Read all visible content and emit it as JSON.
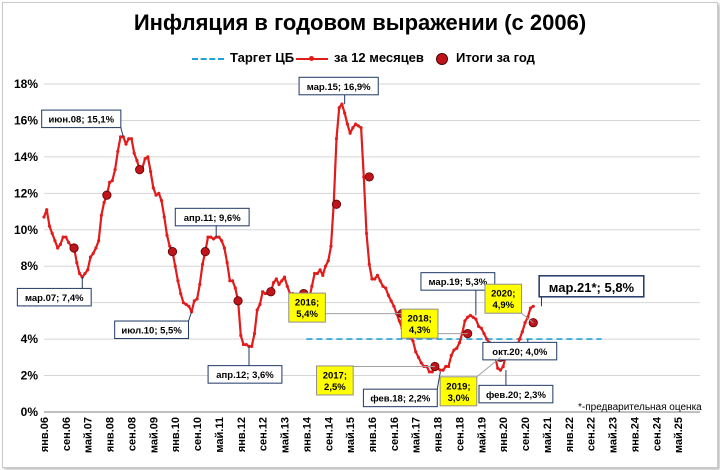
{
  "title": "Инфляция в годовом выражении (с 2006)",
  "legend": {
    "target": "Таргет ЦБ",
    "monthly": "за 12 месяцев",
    "yearly": "Итоги за год"
  },
  "note": "*-предварительная оценка",
  "colors": {
    "line": "#e21b1b",
    "dot": "#c0141b",
    "target": "#1fa3d6",
    "callout_yellow": "#ffff00",
    "callout_border": "#1f3864"
  },
  "chart_data": {
    "type": "line",
    "x_labels": [
      "янв.06",
      "сен.06",
      "май.07",
      "янв.08",
      "сен.08",
      "май.09",
      "янв.10",
      "сен.10",
      "май.11",
      "янв.12",
      "сен.12",
      "май.13",
      "янв.14",
      "сен.14",
      "май.15",
      "янв.16",
      "сен.16",
      "май.17",
      "янв.18",
      "сен.18",
      "май.19",
      "янв.20",
      "сен.20",
      "май.21",
      "янв.22",
      "сен.22",
      "май.23",
      "янв.24",
      "сен.24",
      "май.25"
    ],
    "y_ticks": [
      "0%",
      "2%",
      "4%",
      "6%",
      "8%",
      "10%",
      "12%",
      "14%",
      "16%",
      "18%"
    ],
    "ylim": [
      0,
      18
    ],
    "series": [
      {
        "name": "за 12 месяцев",
        "start": "янв.06",
        "unit": "%",
        "values": [
          10.7,
          11.1,
          10.2,
          9.8,
          9.4,
          9.0,
          9.2,
          9.6,
          9.6,
          9.3,
          9.1,
          9.0,
          8.2,
          7.6,
          7.4,
          7.6,
          7.8,
          8.5,
          8.7,
          9.0,
          9.4,
          10.8,
          11.5,
          11.9,
          12.6,
          12.7,
          13.3,
          14.3,
          15.1,
          15.1,
          14.7,
          15.0,
          15.0,
          14.2,
          13.8,
          13.3,
          13.4,
          13.9,
          14.0,
          13.2,
          12.3,
          11.9,
          12.0,
          11.6,
          10.7,
          9.7,
          9.1,
          8.8,
          8.0,
          7.2,
          6.5,
          6.0,
          5.9,
          5.8,
          5.5,
          6.1,
          6.2,
          7.0,
          8.1,
          8.8,
          9.6,
          9.6,
          9.5,
          9.6,
          9.6,
          9.4,
          9.0,
          8.2,
          7.2,
          7.2,
          6.8,
          6.1,
          4.2,
          3.7,
          3.7,
          3.6,
          3.6,
          4.3,
          5.6,
          5.9,
          6.6,
          6.5,
          6.5,
          6.6,
          7.1,
          7.3,
          7.0,
          7.2,
          7.4,
          6.9,
          6.5,
          6.5,
          6.1,
          6.2,
          6.5,
          6.5,
          6.1,
          6.2,
          6.9,
          7.6,
          7.6,
          7.8,
          7.5,
          8.0,
          8.3,
          9.1,
          11.4,
          15.0,
          16.7,
          16.9,
          16.4,
          15.8,
          15.3,
          15.6,
          15.8,
          15.7,
          15.6,
          12.9,
          9.8,
          8.1,
          7.3,
          7.3,
          7.5,
          7.2,
          6.9,
          6.8,
          6.4,
          6.1,
          5.8,
          5.4,
          5.0,
          4.6,
          4.3,
          4.1,
          4.1,
          3.9,
          3.3,
          3.0,
          2.7,
          2.5,
          2.5,
          2.2,
          2.2,
          2.4,
          2.4,
          2.3,
          2.3,
          2.5,
          2.5,
          3.1,
          3.4,
          3.5,
          3.8,
          4.3,
          5.0,
          5.2,
          5.3,
          5.2,
          5.1,
          4.7,
          4.6,
          4.3,
          4.0,
          3.8,
          3.5,
          3.1,
          2.4,
          2.3,
          2.5,
          3.1,
          3.0,
          3.2,
          3.4,
          3.6,
          4.0,
          4.4,
          4.9,
          5.2,
          5.7,
          5.8
        ]
      },
      {
        "name": "Итоги за год",
        "points": [
          [
            "дек.06",
            9.0
          ],
          [
            "дек.07",
            11.9
          ],
          [
            "дек.08",
            13.3
          ],
          [
            "дек.09",
            8.8
          ],
          [
            "дек.10",
            8.8
          ],
          [
            "дек.11",
            6.1
          ],
          [
            "дек.12",
            6.6
          ],
          [
            "дек.13",
            6.5
          ],
          [
            "дек.14",
            11.4
          ],
          [
            "дек.15",
            12.9
          ],
          [
            "дек.16",
            5.4
          ],
          [
            "дек.17",
            2.5
          ],
          [
            "дек.18",
            4.3
          ],
          [
            "дек.19",
            3.0
          ],
          [
            "дек.20",
            4.9
          ]
        ]
      },
      {
        "name": "Таргет ЦБ",
        "from": "янв.14",
        "to": "янв.23",
        "value": 4.0
      }
    ],
    "annotations": [
      {
        "text": "июн.08; 15,1%",
        "x": "июн.08",
        "y": 15.1,
        "style": "white",
        "pos": "upper-left"
      },
      {
        "text": "мар.07; 7,4%",
        "x": "мар.07",
        "y": 7.4,
        "style": "white",
        "pos": "lower-left"
      },
      {
        "text": "июл.10; 5,5%",
        "x": "июл.10",
        "y": 5.5,
        "style": "white",
        "pos": "lower-left"
      },
      {
        "text": "апр.11; 9,6%",
        "x": "апр.11",
        "y": 9.6,
        "style": "white",
        "pos": "upper"
      },
      {
        "text": "апр.12; 3,6%",
        "x": "апр.12",
        "y": 3.6,
        "style": "white",
        "pos": "lower"
      },
      {
        "text": "мар.15; 16,9%",
        "x": "мар.15",
        "y": 16.9,
        "style": "white",
        "pos": "upper"
      },
      {
        "text": "фев.18; 2,2%",
        "x": "фев.18",
        "y": 2.2,
        "style": "white",
        "pos": "lower-left"
      },
      {
        "text": "мар.19; 5,3%",
        "x": "мар.19",
        "y": 5.3,
        "style": "white",
        "pos": "upper"
      },
      {
        "text": "окт.20; 4,0%",
        "x": "окт.20",
        "y": 4.0,
        "style": "white",
        "pos": "lower-right"
      },
      {
        "text": "фев.20; 2,3%",
        "x": "фев.20",
        "y": 2.3,
        "style": "white",
        "pos": "lower-right"
      },
      {
        "text": "мар.21*; 5,8%",
        "x": "мар.21",
        "y": 5.8,
        "style": "white-large",
        "pos": "upper-right"
      },
      {
        "text": "2016;\n5,4%",
        "x": "дек.16",
        "y": 5.4,
        "style": "yellow",
        "pos": "left"
      },
      {
        "text": "2017;\n2,5%",
        "x": "дек.17",
        "y": 2.5,
        "style": "yellow",
        "pos": "lower-left"
      },
      {
        "text": "2018;\n4,3%",
        "x": "дек.18",
        "y": 4.3,
        "style": "yellow",
        "pos": "upper-left"
      },
      {
        "text": "2019;\n3,0%",
        "x": "дек.19",
        "y": 3.0,
        "style": "yellow",
        "pos": "lower-left"
      },
      {
        "text": "2020;\n4,9%",
        "x": "дек.20",
        "y": 4.9,
        "style": "yellow",
        "pos": "upper-left"
      }
    ],
    "grid": "horizontal"
  }
}
